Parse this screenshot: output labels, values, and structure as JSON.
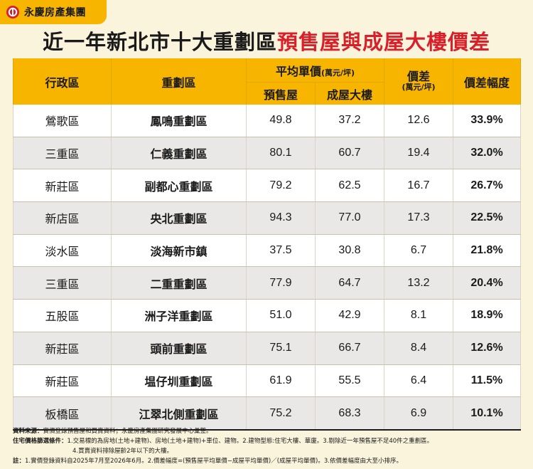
{
  "brand": {
    "name": "永慶房產集團",
    "color": "#f7b500",
    "icon": "brand-logo-icon"
  },
  "title": {
    "part1": "近一年新北市十大重劃區",
    "part2": "預售屋與成屋大樓價差",
    "accent": "#d81f2a"
  },
  "table": {
    "headers": {
      "district": "行政區",
      "zone": "重劃區",
      "avg_price": "平均單價",
      "avg_unit": "(萬元/坪)",
      "presale": "預售屋",
      "existing": "成屋大樓",
      "diff": "價差",
      "diff_unit": "(萬元/坪)",
      "pct": "價差幅度"
    },
    "rows": [
      {
        "district": "鶯歌區",
        "zone": "鳳鳴重劃區",
        "presale": "49.8",
        "existing": "37.2",
        "diff": "12.6",
        "pct": "33.9%"
      },
      {
        "district": "三重區",
        "zone": "仁義重劃區",
        "presale": "80.1",
        "existing": "60.7",
        "diff": "19.4",
        "pct": "32.0%"
      },
      {
        "district": "新莊區",
        "zone": "副都心重劃區",
        "presale": "79.2",
        "existing": "62.5",
        "diff": "16.7",
        "pct": "26.7%"
      },
      {
        "district": "新店區",
        "zone": "央北重劃區",
        "presale": "94.3",
        "existing": "77.0",
        "diff": "17.3",
        "pct": "22.5%"
      },
      {
        "district": "淡水區",
        "zone": "淡海新市鎮",
        "presale": "37.5",
        "existing": "30.8",
        "diff": "6.7",
        "pct": "21.8%"
      },
      {
        "district": "三重區",
        "zone": "二重重劃區",
        "presale": "77.9",
        "existing": "64.7",
        "diff": "13.2",
        "pct": "20.4%"
      },
      {
        "district": "五股區",
        "zone": "洲子洋重劃區",
        "presale": "51.0",
        "existing": "42.9",
        "diff": "8.1",
        "pct": "18.9%"
      },
      {
        "district": "新莊區",
        "zone": "頭前重劃區",
        "presale": "75.1",
        "existing": "66.7",
        "diff": "8.4",
        "pct": "12.6%"
      },
      {
        "district": "新莊區",
        "zone": "塭仔圳重劃區",
        "presale": "61.9",
        "existing": "55.5",
        "diff": "6.4",
        "pct": "11.5%"
      },
      {
        "district": "板橋區",
        "zone": "江翠北側重劃區",
        "presale": "75.2",
        "existing": "68.3",
        "diff": "6.9",
        "pct": "10.1%"
      }
    ]
  },
  "notes": {
    "source_label": "資料來源：",
    "source_text": "實價登錄預售屋和買賣資料；永慶房產集團研究發展中心彙整。",
    "criteria_label": "住宅價格篩選條件：",
    "criteria_line1": "1.交易標的為房地(土地+建物)、房地(土地+建物)+車位、建物。2.建物型態:住宅大樓、華廈。3.剔除近一年預售屋不足40件之重劃區。",
    "criteria_line2": "4.買賣資料排除屋齡2年以下的大樓。",
    "note_label": "註：",
    "note_text": "1.實價登錄資料自2025年7月至2026年6月。2.價差幅度=(預售屋平均單價−成屋平均單價)／(成屋平均單價)。3.依價差幅度由大至小排序。"
  }
}
